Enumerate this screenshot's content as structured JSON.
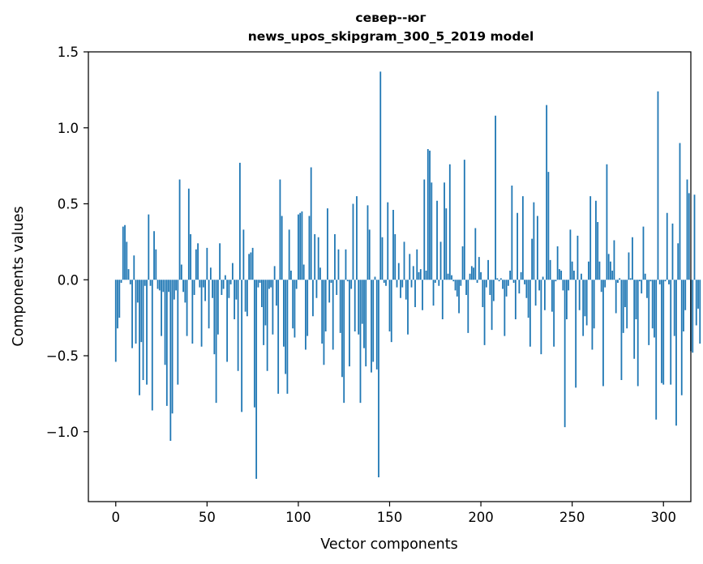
{
  "chart_data": {
    "type": "bar",
    "title": "север--юг",
    "subtitle": "news_upos_skipgram_300_5_2019 model",
    "xlabel": "Vector components",
    "ylabel": "Components values",
    "xlim": [
      -15,
      315
    ],
    "ylim": [
      -1.46,
      1.5
    ],
    "xticks": [
      {
        "value": 0,
        "label": "0"
      },
      {
        "value": 50,
        "label": "50"
      },
      {
        "value": 100,
        "label": "100"
      },
      {
        "value": 150,
        "label": "150"
      },
      {
        "value": 200,
        "label": "200"
      },
      {
        "value": 250,
        "label": "250"
      },
      {
        "value": 300,
        "label": "300"
      }
    ],
    "yticks": [
      {
        "value": -1.0,
        "label": "−1.0"
      },
      {
        "value": -0.5,
        "label": "−0.5"
      },
      {
        "value": 0.0,
        "label": "0.0"
      },
      {
        "value": 0.5,
        "label": "0.5"
      },
      {
        "value": 1.0,
        "label": "1.0"
      },
      {
        "value": 1.5,
        "label": "1.5"
      }
    ],
    "grid": false,
    "bar_color": "#1f77b4",
    "series": [
      {
        "values": [
          -0.54,
          -0.32,
          -0.25,
          -0.02,
          0.35,
          0.36,
          0.25,
          0.07,
          -0.03,
          -0.45,
          0.16,
          -0.42,
          -0.15,
          -0.76,
          -0.41,
          -0.66,
          -0.04,
          -0.69,
          0.43,
          -0.04,
          -0.86,
          0.32,
          0.2,
          -0.06,
          -0.07,
          -0.37,
          -0.08,
          -0.56,
          -0.83,
          -0.08,
          -1.06,
          -0.88,
          -0.13,
          -0.07,
          -0.69,
          0.66,
          0.1,
          -0.08,
          -0.15,
          -0.37,
          0.6,
          0.3,
          -0.42,
          -0.1,
          0.2,
          0.24,
          -0.05,
          -0.44,
          -0.05,
          -0.14,
          0.21,
          -0.32,
          0.08,
          -0.12,
          -0.49,
          -0.81,
          -0.36,
          0.24,
          -0.1,
          -0.06,
          0.03,
          -0.54,
          -0.12,
          -0.03,
          0.11,
          -0.26,
          -0.13,
          -0.6,
          0.77,
          -0.87,
          0.33,
          -0.21,
          -0.24,
          0.17,
          0.18,
          0.21,
          -0.84,
          -1.31,
          -0.05,
          -0.02,
          -0.18,
          -0.43,
          -0.3,
          -0.6,
          -0.06,
          -0.05,
          -0.36,
          0.09,
          -0.17,
          -0.75,
          0.66,
          0.42,
          -0.44,
          -0.62,
          -0.75,
          0.33,
          0.06,
          -0.32,
          -0.38,
          -0.06,
          0.43,
          0.44,
          0.45,
          0.1,
          -0.46,
          -0.37,
          0.42,
          0.74,
          -0.24,
          0.3,
          -0.12,
          0.28,
          0.08,
          -0.42,
          -0.56,
          -0.34,
          0.47,
          -0.15,
          -0.02,
          -0.46,
          0.3,
          -0.1,
          0.2,
          -0.35,
          -0.64,
          -0.81,
          0.2,
          -0.01,
          -0.57,
          -0.06,
          0.5,
          -0.34,
          0.55,
          -0.36,
          -0.81,
          -0.29,
          -0.45,
          -0.57,
          0.49,
          0.33,
          -0.61,
          -0.54,
          0.02,
          -0.59,
          -1.3,
          1.37,
          0.28,
          -0.02,
          -0.04,
          0.51,
          -0.34,
          -0.41,
          0.46,
          0.3,
          -0.05,
          0.11,
          -0.12,
          -0.05,
          0.25,
          -0.13,
          -0.36,
          0.17,
          -0.05,
          0.09,
          -0.18,
          0.2,
          0.05,
          0.07,
          -0.2,
          0.66,
          0.06,
          0.86,
          0.85,
          0.64,
          -0.17,
          -0.02,
          0.52,
          -0.04,
          0.25,
          -0.26,
          0.64,
          0.47,
          0.04,
          0.76,
          0.03,
          -0.01,
          -0.07,
          -0.11,
          -0.22,
          -0.04,
          0.22,
          0.79,
          -0.1,
          -0.35,
          0.04,
          0.09,
          0.08,
          0.34,
          -0.02,
          0.15,
          0.05,
          -0.18,
          -0.43,
          -0.05,
          0.13,
          -0.1,
          -0.33,
          -0.14,
          1.08,
          0.01,
          -0.01,
          0.01,
          -0.06,
          -0.37,
          -0.11,
          -0.04,
          0.06,
          0.62,
          -0.02,
          -0.26,
          0.44,
          -0.09,
          0.05,
          0.55,
          -0.03,
          -0.12,
          -0.25,
          -0.44,
          0.27,
          0.51,
          -0.17,
          0.42,
          -0.07,
          -0.49,
          0.02,
          -0.2,
          1.15,
          0.71,
          0.13,
          -0.21,
          -0.44,
          -0.01,
          0.22,
          0.07,
          0.06,
          -0.07,
          -0.97,
          -0.26,
          -0.07,
          0.33,
          0.12,
          0.06,
          -0.71,
          0.29,
          -0.2,
          0.04,
          -0.37,
          -0.24,
          -0.3,
          0.12,
          0.55,
          -0.46,
          -0.32,
          0.52,
          0.38,
          0.12,
          -0.08,
          -0.7,
          -0.05,
          0.76,
          0.17,
          0.12,
          0.06,
          0.26,
          -0.22,
          -0.02,
          0.01,
          -0.66,
          -0.35,
          -0.18,
          -0.32,
          0.18,
          0.01,
          0.28,
          -0.52,
          -0.26,
          -0.7,
          -0.01,
          -0.09,
          0.35,
          0.04,
          -0.12,
          -0.43,
          -0.01,
          -0.32,
          -0.38,
          -0.92,
          1.24,
          -0.03,
          -0.68,
          -0.69,
          -0.01,
          0.44,
          -0.03,
          -0.69,
          0.37,
          -0.37,
          -0.96,
          0.24,
          0.9,
          -0.76,
          -0.34,
          -0.2,
          0.66,
          0.57,
          -0.47,
          -0.48,
          0.56,
          -0.3,
          -0.19,
          -0.42
        ]
      }
    ]
  }
}
